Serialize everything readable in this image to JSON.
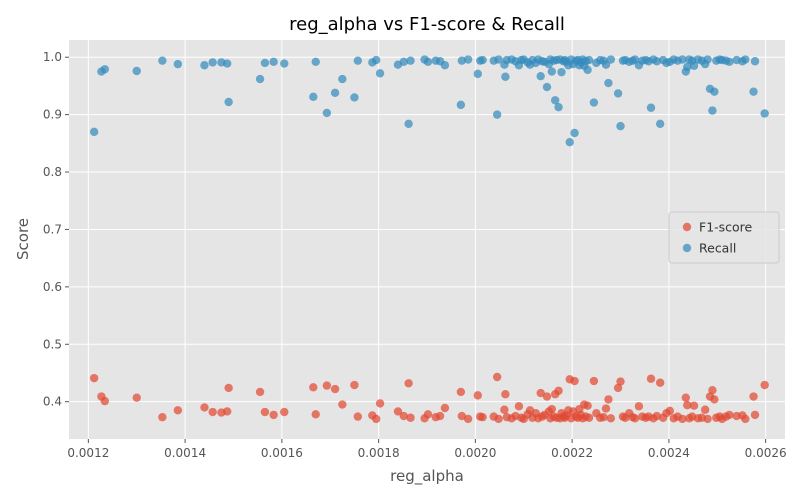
{
  "chart_data": {
    "type": "scatter",
    "title": "reg_alpha vs F1-score & Recall",
    "xlabel": "reg_alpha",
    "ylabel": "Score",
    "xlim": [
      0.00116,
      0.00264
    ],
    "ylim": [
      0.335,
      1.03
    ],
    "xticks": [
      0.0012,
      0.0014,
      0.0016,
      0.0018,
      0.002,
      0.0022,
      0.0024,
      0.0026
    ],
    "xtick_labels": [
      "0.0012",
      "0.0014",
      "0.0016",
      "0.0018",
      "0.0020",
      "0.0022",
      "0.0024",
      "0.0026"
    ],
    "yticks": [
      0.4,
      0.5,
      0.6,
      0.7,
      0.8,
      0.9,
      1.0
    ],
    "ytick_labels": [
      "0.4",
      "0.5",
      "0.6",
      "0.7",
      "0.8",
      "0.9",
      "1.0"
    ],
    "grid": true,
    "legend_position": "center-right",
    "background_color": "#e5e5e5",
    "grid_color": "#ffffff",
    "series": [
      {
        "name": "F1-score",
        "color": "#e24a33",
        "points": [
          [
            0.001212,
            0.441
          ],
          [
            0.001227,
            0.409
          ],
          [
            0.001234,
            0.401
          ],
          [
            0.0013,
            0.407
          ],
          [
            0.001353,
            0.373
          ],
          [
            0.001385,
            0.385
          ],
          [
            0.00144,
            0.39
          ],
          [
            0.001457,
            0.382
          ],
          [
            0.001475,
            0.381
          ],
          [
            0.001487,
            0.383
          ],
          [
            0.00149,
            0.424
          ],
          [
            0.001555,
            0.417
          ],
          [
            0.001565,
            0.382
          ],
          [
            0.001583,
            0.377
          ],
          [
            0.001605,
            0.382
          ],
          [
            0.001665,
            0.425
          ],
          [
            0.00167,
            0.378
          ],
          [
            0.001693,
            0.428
          ],
          [
            0.00171,
            0.422
          ],
          [
            0.001725,
            0.395
          ],
          [
            0.00175,
            0.429
          ],
          [
            0.001757,
            0.374
          ],
          [
            0.001787,
            0.376
          ],
          [
            0.001795,
            0.37
          ],
          [
            0.001803,
            0.397
          ],
          [
            0.00184,
            0.383
          ],
          [
            0.001852,
            0.375
          ],
          [
            0.001862,
            0.432
          ],
          [
            0.001866,
            0.372
          ],
          [
            0.001895,
            0.371
          ],
          [
            0.001902,
            0.378
          ],
          [
            0.001918,
            0.373
          ],
          [
            0.001927,
            0.375
          ],
          [
            0.001937,
            0.389
          ],
          [
            0.00197,
            0.417
          ],
          [
            0.001972,
            0.375
          ],
          [
            0.001985,
            0.37
          ],
          [
            0.002005,
            0.411
          ],
          [
            0.00201,
            0.374
          ],
          [
            0.002015,
            0.373
          ],
          [
            0.002038,
            0.374
          ],
          [
            0.002045,
            0.443
          ],
          [
            0.002048,
            0.37
          ],
          [
            0.00206,
            0.386
          ],
          [
            0.002062,
            0.413
          ],
          [
            0.002065,
            0.373
          ],
          [
            0.002075,
            0.371
          ],
          [
            0.002083,
            0.375
          ],
          [
            0.00209,
            0.392
          ],
          [
            0.002095,
            0.372
          ],
          [
            0.0021,
            0.37
          ],
          [
            0.002108,
            0.378
          ],
          [
            0.002113,
            0.385
          ],
          [
            0.002118,
            0.372
          ],
          [
            0.002125,
            0.38
          ],
          [
            0.00213,
            0.371
          ],
          [
            0.002135,
            0.415
          ],
          [
            0.002138,
            0.374
          ],
          [
            0.002143,
            0.377
          ],
          [
            0.002148,
            0.409
          ],
          [
            0.002152,
            0.383
          ],
          [
            0.002155,
            0.371
          ],
          [
            0.002158,
            0.387
          ],
          [
            0.002162,
            0.374
          ],
          [
            0.002165,
            0.413
          ],
          [
            0.002168,
            0.372
          ],
          [
            0.002172,
            0.419
          ],
          [
            0.002175,
            0.371
          ],
          [
            0.002178,
            0.38
          ],
          [
            0.002182,
            0.374
          ],
          [
            0.002185,
            0.372
          ],
          [
            0.002188,
            0.376
          ],
          [
            0.002192,
            0.385
          ],
          [
            0.002195,
            0.439
          ],
          [
            0.002198,
            0.371
          ],
          [
            0.002202,
            0.383
          ],
          [
            0.002205,
            0.436
          ],
          [
            0.002208,
            0.374
          ],
          [
            0.002212,
            0.372
          ],
          [
            0.002215,
            0.387
          ],
          [
            0.002218,
            0.377
          ],
          [
            0.002222,
            0.371
          ],
          [
            0.002225,
            0.395
          ],
          [
            0.002228,
            0.374
          ],
          [
            0.002232,
            0.393
          ],
          [
            0.002235,
            0.372
          ],
          [
            0.002245,
            0.436
          ],
          [
            0.00225,
            0.38
          ],
          [
            0.002258,
            0.372
          ],
          [
            0.002265,
            0.373
          ],
          [
            0.00227,
            0.388
          ],
          [
            0.002275,
            0.404
          ],
          [
            0.00228,
            0.371
          ],
          [
            0.002295,
            0.424
          ],
          [
            0.0023,
            0.435
          ],
          [
            0.002305,
            0.374
          ],
          [
            0.00231,
            0.372
          ],
          [
            0.002318,
            0.38
          ],
          [
            0.002325,
            0.373
          ],
          [
            0.00233,
            0.371
          ],
          [
            0.002338,
            0.392
          ],
          [
            0.002345,
            0.374
          ],
          [
            0.002352,
            0.372
          ],
          [
            0.002358,
            0.374
          ],
          [
            0.002363,
            0.44
          ],
          [
            0.002368,
            0.371
          ],
          [
            0.002375,
            0.375
          ],
          [
            0.002382,
            0.433
          ],
          [
            0.002388,
            0.372
          ],
          [
            0.002395,
            0.38
          ],
          [
            0.002402,
            0.384
          ],
          [
            0.00241,
            0.371
          ],
          [
            0.002418,
            0.374
          ],
          [
            0.002428,
            0.37
          ],
          [
            0.002435,
            0.407
          ],
          [
            0.002438,
            0.394
          ],
          [
            0.002442,
            0.371
          ],
          [
            0.002448,
            0.374
          ],
          [
            0.002452,
            0.393
          ],
          [
            0.00246,
            0.371
          ],
          [
            0.002468,
            0.372
          ],
          [
            0.002475,
            0.386
          ],
          [
            0.00248,
            0.37
          ],
          [
            0.002485,
            0.409
          ],
          [
            0.00249,
            0.42
          ],
          [
            0.002494,
            0.404
          ],
          [
            0.002498,
            0.372
          ],
          [
            0.002505,
            0.374
          ],
          [
            0.00251,
            0.37
          ],
          [
            0.002518,
            0.374
          ],
          [
            0.002525,
            0.377
          ],
          [
            0.00254,
            0.375
          ],
          [
            0.002552,
            0.376
          ],
          [
            0.002558,
            0.37
          ],
          [
            0.002575,
            0.409
          ],
          [
            0.002578,
            0.377
          ],
          [
            0.002598,
            0.429
          ]
        ]
      },
      {
        "name": "Recall",
        "color": "#348abd",
        "points": [
          [
            0.001212,
            0.87
          ],
          [
            0.001227,
            0.975
          ],
          [
            0.001234,
            0.979
          ],
          [
            0.0013,
            0.976
          ],
          [
            0.001353,
            0.994
          ],
          [
            0.001385,
            0.988
          ],
          [
            0.00144,
            0.986
          ],
          [
            0.001457,
            0.991
          ],
          [
            0.001475,
            0.991
          ],
          [
            0.001487,
            0.989
          ],
          [
            0.00149,
            0.922
          ],
          [
            0.001555,
            0.962
          ],
          [
            0.001565,
            0.99
          ],
          [
            0.001583,
            0.992
          ],
          [
            0.001605,
            0.989
          ],
          [
            0.001665,
            0.931
          ],
          [
            0.00167,
            0.992
          ],
          [
            0.001693,
            0.903
          ],
          [
            0.00171,
            0.938
          ],
          [
            0.001725,
            0.962
          ],
          [
            0.00175,
            0.93
          ],
          [
            0.001757,
            0.994
          ],
          [
            0.001787,
            0.991
          ],
          [
            0.001795,
            0.995
          ],
          [
            0.001803,
            0.972
          ],
          [
            0.00184,
            0.987
          ],
          [
            0.001852,
            0.992
          ],
          [
            0.001862,
            0.884
          ],
          [
            0.001866,
            0.994
          ],
          [
            0.001895,
            0.996
          ],
          [
            0.001902,
            0.992
          ],
          [
            0.001918,
            0.994
          ],
          [
            0.001927,
            0.993
          ],
          [
            0.001937,
            0.986
          ],
          [
            0.00197,
            0.917
          ],
          [
            0.001972,
            0.994
          ],
          [
            0.001985,
            0.996
          ],
          [
            0.002005,
            0.971
          ],
          [
            0.00201,
            0.994
          ],
          [
            0.002015,
            0.995
          ],
          [
            0.002038,
            0.994
          ],
          [
            0.002045,
            0.9
          ],
          [
            0.002048,
            0.996
          ],
          [
            0.00206,
            0.987
          ],
          [
            0.002062,
            0.966
          ],
          [
            0.002065,
            0.995
          ],
          [
            0.002075,
            0.996
          ],
          [
            0.002083,
            0.993
          ],
          [
            0.00209,
            0.986
          ],
          [
            0.002095,
            0.995
          ],
          [
            0.0021,
            0.996
          ],
          [
            0.002108,
            0.991
          ],
          [
            0.002113,
            0.987
          ],
          [
            0.002118,
            0.995
          ],
          [
            0.002125,
            0.99
          ],
          [
            0.00213,
            0.996
          ],
          [
            0.002135,
            0.967
          ],
          [
            0.002138,
            0.993
          ],
          [
            0.002143,
            0.992
          ],
          [
            0.002148,
            0.948
          ],
          [
            0.002152,
            0.988
          ],
          [
            0.002155,
            0.996
          ],
          [
            0.002158,
            0.975
          ],
          [
            0.002162,
            0.994
          ],
          [
            0.002165,
            0.925
          ],
          [
            0.002168,
            0.995
          ],
          [
            0.002172,
            0.913
          ],
          [
            0.002175,
            0.996
          ],
          [
            0.002178,
            0.974
          ],
          [
            0.002182,
            0.993
          ],
          [
            0.002185,
            0.995
          ],
          [
            0.002188,
            0.992
          ],
          [
            0.002192,
            0.986
          ],
          [
            0.002195,
            0.852
          ],
          [
            0.002198,
            0.996
          ],
          [
            0.002202,
            0.988
          ],
          [
            0.002205,
            0.868
          ],
          [
            0.002208,
            0.994
          ],
          [
            0.002212,
            0.995
          ],
          [
            0.002215,
            0.986
          ],
          [
            0.002218,
            0.991
          ],
          [
            0.002222,
            0.996
          ],
          [
            0.002225,
            0.985
          ],
          [
            0.002228,
            0.993
          ],
          [
            0.002232,
            0.978
          ],
          [
            0.002235,
            0.995
          ],
          [
            0.002245,
            0.921
          ],
          [
            0.00225,
            0.99
          ],
          [
            0.002258,
            0.995
          ],
          [
            0.002265,
            0.994
          ],
          [
            0.00227,
            0.987
          ],
          [
            0.002275,
            0.955
          ],
          [
            0.00228,
            0.996
          ],
          [
            0.002295,
            0.937
          ],
          [
            0.0023,
            0.88
          ],
          [
            0.002305,
            0.994
          ],
          [
            0.00231,
            0.995
          ],
          [
            0.002318,
            0.992
          ],
          [
            0.002325,
            0.994
          ],
          [
            0.00233,
            0.996
          ],
          [
            0.002338,
            0.986
          ],
          [
            0.002345,
            0.994
          ],
          [
            0.002352,
            0.995
          ],
          [
            0.002358,
            0.993
          ],
          [
            0.002363,
            0.912
          ],
          [
            0.002368,
            0.996
          ],
          [
            0.002375,
            0.993
          ],
          [
            0.002382,
            0.884
          ],
          [
            0.002388,
            0.995
          ],
          [
            0.002395,
            0.99
          ],
          [
            0.002402,
            0.992
          ],
          [
            0.00241,
            0.996
          ],
          [
            0.002418,
            0.994
          ],
          [
            0.002428,
            0.996
          ],
          [
            0.002435,
            0.975
          ],
          [
            0.002438,
            0.983
          ],
          [
            0.002442,
            0.996
          ],
          [
            0.002448,
            0.994
          ],
          [
            0.002452,
            0.985
          ],
          [
            0.00246,
            0.996
          ],
          [
            0.002468,
            0.994
          ],
          [
            0.002475,
            0.988
          ],
          [
            0.00248,
            0.996
          ],
          [
            0.002485,
            0.945
          ],
          [
            0.00249,
            0.907
          ],
          [
            0.002494,
            0.94
          ],
          [
            0.002498,
            0.994
          ],
          [
            0.002505,
            0.996
          ],
          [
            0.00251,
            0.995
          ],
          [
            0.002518,
            0.994
          ],
          [
            0.002525,
            0.992
          ],
          [
            0.00254,
            0.995
          ],
          [
            0.002552,
            0.993
          ],
          [
            0.002558,
            0.996
          ],
          [
            0.002575,
            0.94
          ],
          [
            0.002578,
            0.993
          ],
          [
            0.002598,
            0.902
          ]
        ]
      }
    ]
  }
}
